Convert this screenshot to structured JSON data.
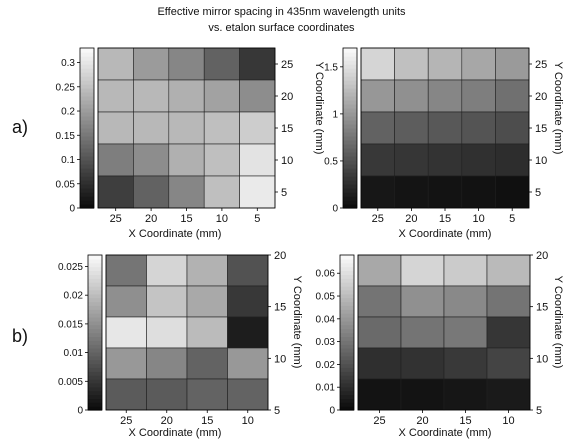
{
  "figure": {
    "title_line1": "Effective mirror spacing in 435nm wavelength units",
    "title_line2": "vs. etalon surface coordinates"
  },
  "row_labels": [
    "a)",
    "b)"
  ],
  "chart_data": [
    {
      "type": "heatmap",
      "panel": "a) left",
      "xlabel": "X Coordinate (mm)",
      "ylabel": "Y Coordinate (mm)",
      "x_ticks": [
        "25",
        "20",
        "15",
        "10",
        "5"
      ],
      "y_ticks": [
        "25",
        "20",
        "15",
        "10",
        "5"
      ],
      "colorbar_ticks": [
        "0",
        "0.05",
        "0.1",
        "0.15",
        "0.2",
        "0.25",
        "0.3"
      ],
      "colorbar_range": [
        0,
        0.33
      ],
      "grid": true,
      "values": [
        [
          0.24,
          0.2,
          0.17,
          0.12,
          0.06
        ],
        [
          0.24,
          0.24,
          0.23,
          0.21,
          0.18
        ],
        [
          0.24,
          0.24,
          0.24,
          0.25,
          0.27
        ],
        [
          0.16,
          0.18,
          0.23,
          0.25,
          0.3
        ],
        [
          0.07,
          0.12,
          0.17,
          0.25,
          0.31
        ]
      ]
    },
    {
      "type": "heatmap",
      "panel": "a) right",
      "xlabel": "X Coordinate (mm)",
      "ylabel": "Y Coordinate (mm)",
      "x_ticks": [
        "25",
        "20",
        "15",
        "10",
        "5"
      ],
      "y_ticks": [
        "25",
        "20",
        "15",
        "10",
        "5"
      ],
      "colorbar_ticks": [
        "0",
        "0.5",
        "1",
        "1.5"
      ],
      "colorbar_range": [
        0,
        1.7
      ],
      "grid": true,
      "values": [
        [
          1.45,
          1.3,
          1.22,
          1.12,
          1.02
        ],
        [
          1.0,
          0.95,
          0.88,
          0.82,
          0.72
        ],
        [
          0.62,
          0.58,
          0.55,
          0.52,
          0.47
        ],
        [
          0.32,
          0.3,
          0.28,
          0.26,
          0.24
        ],
        [
          0.08,
          0.06,
          0.05,
          0.04,
          0.03
        ]
      ]
    },
    {
      "type": "heatmap",
      "panel": "b) left",
      "xlabel": "X Coordinate (mm)",
      "ylabel": "Y Coordinate (mm)",
      "x_ticks": [
        "25",
        "20",
        "15",
        "10"
      ],
      "y_ticks": [
        "20",
        "15",
        "10",
        "5"
      ],
      "colorbar_ticks": [
        "0",
        "0.005",
        "0.01",
        "0.015",
        "0.02",
        "0.025"
      ],
      "colorbar_range": [
        0,
        0.027
      ],
      "grid": true,
      "values": [
        [
          0.012,
          0.023,
          0.019,
          0.008
        ],
        [
          0.015,
          0.021,
          0.018,
          0.005
        ],
        [
          0.025,
          0.024,
          0.02,
          0.002
        ],
        [
          0.016,
          0.014,
          0.01,
          0.016
        ],
        [
          0.009,
          0.009,
          0.01,
          0.01
        ]
      ]
    },
    {
      "type": "heatmap",
      "panel": "b) right",
      "xlabel": "X Coordinate (mm)",
      "ylabel": "Y Coordinate (mm)",
      "x_ticks": [
        "25",
        "20",
        "15",
        "10"
      ],
      "y_ticks": [
        "20",
        "15",
        "10",
        "5"
      ],
      "colorbar_ticks": [
        "0",
        "0.01",
        "0.02",
        "0.03",
        "0.04",
        "0.05",
        "0.06"
      ],
      "colorbar_range": [
        0,
        0.068
      ],
      "grid": true,
      "values": [
        [
          0.045,
          0.058,
          0.055,
          0.05
        ],
        [
          0.03,
          0.038,
          0.036,
          0.03
        ],
        [
          0.027,
          0.03,
          0.031,
          0.012
        ],
        [
          0.01,
          0.011,
          0.013,
          0.016
        ],
        [
          0.002,
          0.002,
          0.003,
          0.004
        ]
      ]
    }
  ]
}
